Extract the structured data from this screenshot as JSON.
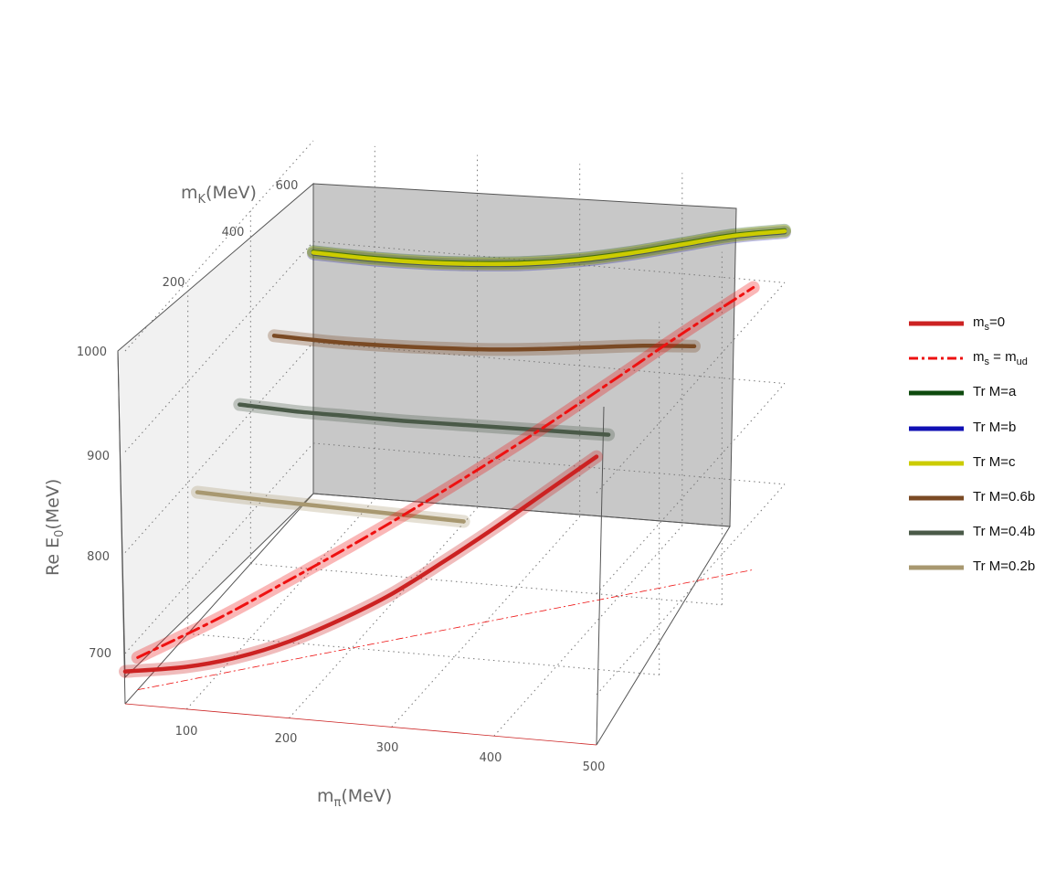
{
  "chart_data": {
    "type": "line",
    "subtype": "3d-curves",
    "axes": {
      "x": {
        "label": "m",
        "label_sub": "π",
        "label_unit": "(MeV)",
        "ticks": [
          "100",
          "200",
          "300",
          "400",
          "500"
        ]
      },
      "y": {
        "label": "m",
        "label_sub": "K",
        "label_unit": "(MeV)",
        "ticks": [
          "200",
          "400",
          "600"
        ]
      },
      "z": {
        "label": "Re E",
        "label_sub": "0",
        "label_unit": "(MeV)",
        "ticks": [
          "700",
          "800",
          "900",
          "1000"
        ]
      }
    },
    "grid": true,
    "legend_placement": "right",
    "legend": [
      {
        "text": "m",
        "sub": "s",
        "suffix": "=0",
        "color": "#cc2222",
        "style": "solid"
      },
      {
        "text": "m",
        "sub": "s",
        "suffix": " = m",
        "sub2": "ud",
        "color": "#ee1111",
        "style": "dashdot"
      },
      {
        "text": "Tr M=a",
        "color": "#0e4a0e",
        "style": "solid"
      },
      {
        "text": "Tr M=b",
        "color": "#1010b4",
        "style": "solid"
      },
      {
        "text": "Tr M=c",
        "color": "#cccc00",
        "style": "solid"
      },
      {
        "text": "Tr M=0.6b",
        "color": "#7a4a24",
        "style": "solid"
      },
      {
        "text": "Tr M=0.4b",
        "color": "#4a5a48",
        "style": "solid"
      },
      {
        "text": "Tr M=0.2b",
        "color": "#a89870",
        "style": "solid"
      }
    ],
    "series": [
      {
        "name": "m_s=0",
        "color": "#cc2222",
        "x": [
          40,
          100,
          150,
          200,
          250,
          300,
          350,
          400,
          450,
          500
        ],
        "y": [
          0,
          0,
          0,
          0,
          0,
          0,
          0,
          0,
          0,
          0
        ],
        "z": [
          682,
          692,
          706,
          726,
          752,
          782,
          818,
          856,
          896,
          936
        ]
      },
      {
        "name": "m_s = m_ud",
        "color": "#ee1111",
        "x": [
          40,
          100,
          150,
          200,
          250,
          300,
          350,
          400,
          450,
          500
        ],
        "y": [
          40,
          100,
          150,
          200,
          250,
          300,
          350,
          400,
          450,
          500
        ],
        "z": [
          682,
          705,
          728,
          752,
          778,
          806,
          836,
          868,
          900,
          930
        ]
      },
      {
        "name": "Tr M=a",
        "color": "#0e4a0e",
        "x": [
          40,
          100,
          150,
          200,
          250,
          300,
          350,
          400,
          450,
          500
        ],
        "y": [
          600,
          600,
          600,
          600,
          600,
          600,
          600,
          600,
          600,
          600
        ],
        "z": [
          890,
          889,
          890,
          893,
          898,
          906,
          917,
          930,
          943,
          952
        ]
      },
      {
        "name": "Tr M=b",
        "color": "#1010b4",
        "x": [
          40,
          100,
          150,
          200,
          250,
          300,
          350,
          400,
          450,
          500
        ],
        "y": [
          600,
          600,
          600,
          600,
          600,
          600,
          600,
          600,
          600,
          600
        ],
        "z": [
          888,
          887,
          888,
          891,
          896,
          904,
          915,
          928,
          941,
          950
        ]
      },
      {
        "name": "Tr M=c",
        "color": "#cccc00",
        "x": [
          40,
          100,
          150,
          200,
          250,
          300,
          350,
          400,
          450,
          500
        ],
        "y": [
          600,
          600,
          600,
          600,
          600,
          600,
          600,
          600,
          600,
          600
        ],
        "z": [
          889,
          888,
          889,
          892,
          897,
          905,
          916,
          929,
          942,
          951
        ]
      },
      {
        "name": "Tr M=0.6b",
        "color": "#7a4a24",
        "x": [
          40,
          100,
          150,
          200,
          250,
          300,
          350,
          400,
          450
        ],
        "y": [
          475,
          475,
          475,
          475,
          475,
          475,
          475,
          475,
          475
        ],
        "z": [
          850,
          849,
          850,
          852,
          855,
          860,
          866,
          872,
          876
        ]
      },
      {
        "name": "Tr M=0.4b",
        "color": "#4a5a48",
        "x": [
          40,
          100,
          150,
          200,
          250,
          300,
          350,
          400
        ],
        "y": [
          365,
          365,
          365,
          365,
          365,
          365,
          365,
          365
        ],
        "z": [
          820,
          818,
          818,
          818,
          819,
          820,
          821,
          822
        ]
      },
      {
        "name": "Tr M=0.2b",
        "color": "#a89870",
        "x": [
          40,
          100,
          150,
          200,
          250,
          300
        ],
        "y": [
          230,
          230,
          230,
          230,
          230,
          230
        ],
        "z": [
          780,
          778,
          777,
          776,
          775,
          774
        ]
      }
    ]
  }
}
